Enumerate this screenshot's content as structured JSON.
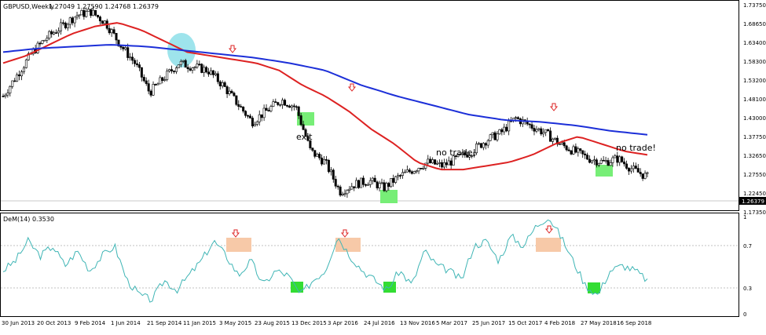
{
  "chart_data": [
    {
      "type": "candlestick",
      "symbol_header": "GBPUSD,Weekly",
      "ohlc_header": "1.27049 1.27590 1.24768 1.26379",
      "current_price_label": "1.26379",
      "ylim": [
        1.1735,
        1.7375
      ],
      "yticks": [
        "1.73750",
        "1.68650",
        "1.63400",
        "1.58300",
        "1.53200",
        "1.48100",
        "1.43000",
        "1.37750",
        "1.32650",
        "1.27550",
        "1.22450",
        "1.17350"
      ],
      "price_path": [
        1.48,
        1.54,
        1.6,
        1.64,
        1.67,
        1.7,
        1.71,
        1.68,
        1.62,
        1.57,
        1.49,
        1.53,
        1.57,
        1.56,
        1.55,
        1.51,
        1.46,
        1.41,
        1.44,
        1.47,
        1.45,
        1.33,
        1.3,
        1.22,
        1.24,
        1.25,
        1.23,
        1.26,
        1.28,
        1.3,
        1.29,
        1.31,
        1.33,
        1.36,
        1.38,
        1.42,
        1.4,
        1.38,
        1.35,
        1.33,
        1.31,
        1.3,
        1.31,
        1.28,
        1.26
      ],
      "series": [
        {
          "name": "",
          "color": "#dd2222",
          "values": [
            1.57,
            1.59,
            1.62,
            1.65,
            1.67,
            1.68,
            1.66,
            1.63,
            1.6,
            1.59,
            1.58,
            1.57,
            1.55,
            1.51,
            1.48,
            1.44,
            1.39,
            1.35,
            1.3,
            1.28,
            1.28,
            1.29,
            1.3,
            1.32,
            1.35,
            1.37,
            1.35,
            1.33,
            1.32
          ]
        },
        {
          "name": "",
          "color": "#1c2fd8",
          "values": [
            1.6,
            1.61,
            1.615,
            1.62,
            1.615,
            1.605,
            1.595,
            1.585,
            1.57,
            1.55,
            1.51,
            1.48,
            1.455,
            1.43,
            1.415,
            1.41,
            1.4,
            1.385,
            1.375
          ]
        }
      ],
      "annotations": [
        "exit",
        "no trade!",
        "no trade!"
      ]
    },
    {
      "type": "line",
      "indicator_label": "DeM(14) 0.3530",
      "ylim": [
        0,
        1
      ],
      "yticks": [
        "1",
        "0.7",
        "0.3",
        "0"
      ],
      "levels": [
        0.7,
        0.3
      ],
      "line_color": "#3fb5b5",
      "values": [
        0.45,
        0.55,
        0.75,
        0.6,
        0.7,
        0.5,
        0.65,
        0.45,
        0.6,
        0.7,
        0.35,
        0.2,
        0.15,
        0.35,
        0.25,
        0.4,
        0.55,
        0.75,
        0.6,
        0.4,
        0.55,
        0.3,
        0.45,
        0.4,
        0.2,
        0.35,
        0.45,
        0.8,
        0.6,
        0.45,
        0.35,
        0.25,
        0.45,
        0.3,
        0.65,
        0.5,
        0.45,
        0.35,
        0.7,
        0.75,
        0.55,
        0.8,
        0.7,
        0.9,
        1.0,
        0.8,
        0.55,
        0.3,
        0.2,
        0.45,
        0.5,
        0.45,
        0.35
      ]
    }
  ],
  "x_axis": {
    "labels": [
      "30 Jun 2013",
      "20 Oct 2013",
      "9 Feb 2014",
      "1 Jun 2014",
      "21 Sep 2014",
      "11 Jan 2015",
      "3 May 2015",
      "23 Aug 2015",
      "13 Dec 2015",
      "3 Apr 2016",
      "24 Jul 2016",
      "13 Nov 2016",
      "5 Mar 2017",
      "25 Jun 2017",
      "15 Oct 2017",
      "4 Feb 2018",
      "27 May 2018",
      "16 Sep 2018"
    ]
  },
  "colors": {
    "up_candle": "#ffffff",
    "down_candle": "#000000",
    "grid": "#c8c8c8",
    "zone_green": "#77ee77",
    "zone_orange": "#f7c9a8",
    "zone_cyan": "#9ee4ec",
    "arrow": "#dd2222"
  }
}
